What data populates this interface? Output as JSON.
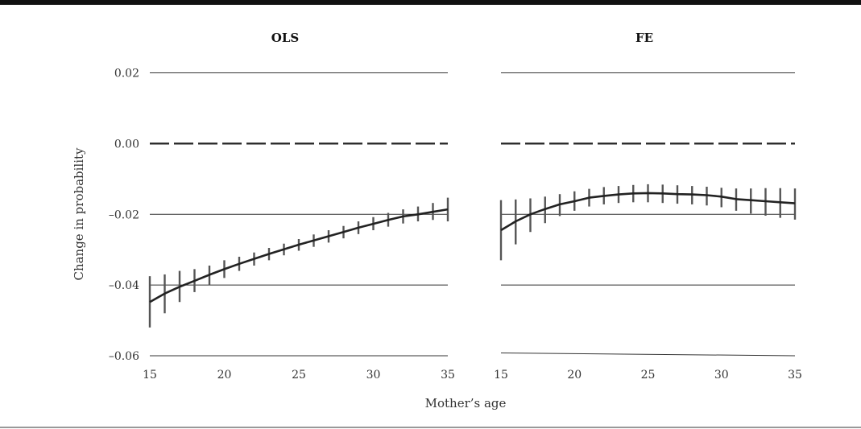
{
  "chart_data": [
    {
      "type": "line",
      "title": "OLS",
      "xlabel": "Mother’s age",
      "ylabel": "Change in probability",
      "xlim": [
        15,
        35
      ],
      "ylim": [
        -0.06,
        0.02
      ],
      "x_ticks": [
        15,
        20,
        25,
        30,
        35
      ],
      "y_ticks": [
        0.02,
        0.0,
        -0.02,
        -0.04,
        -0.06
      ],
      "y_tick_labels": [
        "0.02",
        "0.00",
        "–0.02",
        "–0.04",
        "–0.06"
      ],
      "grid": "horizontal",
      "reference_line": 0.0,
      "x": [
        15,
        16,
        17,
        18,
        19,
        20,
        21,
        22,
        23,
        24,
        25,
        26,
        27,
        28,
        29,
        30,
        31,
        32,
        33,
        34,
        35
      ],
      "y": [
        -0.0448,
        -0.0424,
        -0.0405,
        -0.0388,
        -0.0371,
        -0.0355,
        -0.034,
        -0.0326,
        -0.0312,
        -0.0299,
        -0.0286,
        -0.0274,
        -0.0262,
        -0.025,
        -0.0238,
        -0.0227,
        -0.0216,
        -0.0206,
        -0.02,
        -0.0193,
        -0.0186
      ],
      "ci_low": [
        -0.052,
        -0.048,
        -0.0448,
        -0.042,
        -0.04,
        -0.038,
        -0.036,
        -0.0345,
        -0.033,
        -0.0316,
        -0.0303,
        -0.0292,
        -0.028,
        -0.0268,
        -0.0256,
        -0.0245,
        -0.0235,
        -0.0226,
        -0.022,
        -0.0216,
        -0.022
      ],
      "ci_high": [
        -0.0375,
        -0.037,
        -0.036,
        -0.0355,
        -0.0345,
        -0.033,
        -0.032,
        -0.0308,
        -0.0295,
        -0.0283,
        -0.027,
        -0.0257,
        -0.0245,
        -0.0233,
        -0.022,
        -0.0208,
        -0.0196,
        -0.0186,
        -0.0178,
        -0.0168,
        -0.0153
      ]
    },
    {
      "type": "line",
      "title": "FE",
      "xlabel": "Mother’s age",
      "ylabel": "",
      "xlim": [
        15,
        35
      ],
      "ylim": [
        -0.06,
        0.02
      ],
      "x_ticks": [
        15,
        20,
        25,
        30,
        35
      ],
      "grid": "horizontal",
      "reference_line": 0.0,
      "x": [
        15,
        16,
        17,
        18,
        19,
        20,
        21,
        22,
        23,
        24,
        25,
        26,
        27,
        28,
        29,
        30,
        31,
        32,
        33,
        34,
        35
      ],
      "y": [
        -0.0245,
        -0.022,
        -0.02,
        -0.0185,
        -0.0172,
        -0.0163,
        -0.0153,
        -0.0148,
        -0.0144,
        -0.0141,
        -0.014,
        -0.0141,
        -0.0143,
        -0.0144,
        -0.0146,
        -0.015,
        -0.0157,
        -0.016,
        -0.0163,
        -0.0166,
        -0.0169
      ],
      "ci_low": [
        -0.033,
        -0.0285,
        -0.025,
        -0.0225,
        -0.0205,
        -0.019,
        -0.0178,
        -0.0172,
        -0.0168,
        -0.0166,
        -0.0166,
        -0.0168,
        -0.017,
        -0.0172,
        -0.0175,
        -0.018,
        -0.019,
        -0.0198,
        -0.0204,
        -0.021,
        -0.0215
      ],
      "ci_high": [
        -0.016,
        -0.0158,
        -0.0155,
        -0.015,
        -0.0143,
        -0.0135,
        -0.0128,
        -0.0123,
        -0.012,
        -0.0117,
        -0.0115,
        -0.0116,
        -0.0118,
        -0.012,
        -0.0122,
        -0.0125,
        -0.0127,
        -0.0127,
        -0.0126,
        -0.0126,
        -0.0127
      ]
    }
  ]
}
